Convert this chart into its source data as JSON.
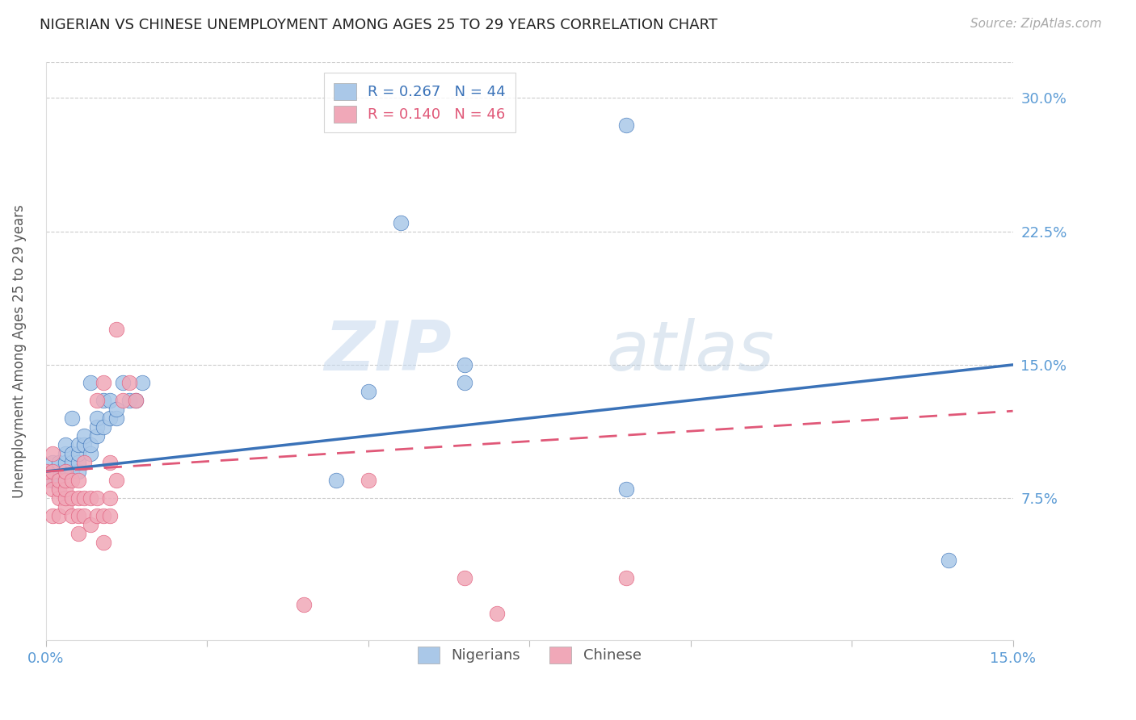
{
  "title": "NIGERIAN VS CHINESE UNEMPLOYMENT AMONG AGES 25 TO 29 YEARS CORRELATION CHART",
  "source": "Source: ZipAtlas.com",
  "ylabel": "Unemployment Among Ages 25 to 29 years",
  "xlim": [
    0.0,
    0.15
  ],
  "ylim": [
    -0.005,
    0.32
  ],
  "watermark": "ZIPatlas",
  "nigerian_R": 0.267,
  "nigerian_N": 44,
  "chinese_R": 0.14,
  "chinese_N": 46,
  "nigerian_color": "#aac8e8",
  "chinese_color": "#f0a8b8",
  "nigerian_line_color": "#3a72b8",
  "chinese_line_color": "#e05878",
  "nigerian_x": [
    0.001,
    0.001,
    0.001,
    0.002,
    0.002,
    0.002,
    0.003,
    0.003,
    0.003,
    0.003,
    0.004,
    0.004,
    0.004,
    0.004,
    0.005,
    0.005,
    0.005,
    0.005,
    0.006,
    0.006,
    0.007,
    0.007,
    0.007,
    0.008,
    0.008,
    0.008,
    0.009,
    0.009,
    0.01,
    0.01,
    0.011,
    0.011,
    0.012,
    0.013,
    0.014,
    0.015,
    0.045,
    0.05,
    0.055,
    0.065,
    0.065,
    0.09,
    0.09,
    0.14
  ],
  "nigerian_y": [
    0.085,
    0.09,
    0.095,
    0.085,
    0.09,
    0.095,
    0.09,
    0.095,
    0.1,
    0.105,
    0.09,
    0.095,
    0.1,
    0.12,
    0.09,
    0.095,
    0.1,
    0.105,
    0.105,
    0.11,
    0.1,
    0.105,
    0.14,
    0.11,
    0.115,
    0.12,
    0.115,
    0.13,
    0.12,
    0.13,
    0.12,
    0.125,
    0.14,
    0.13,
    0.13,
    0.14,
    0.085,
    0.135,
    0.23,
    0.14,
    0.15,
    0.08,
    0.285,
    0.04
  ],
  "chinese_x": [
    0.0,
    0.0,
    0.001,
    0.001,
    0.001,
    0.001,
    0.002,
    0.002,
    0.002,
    0.002,
    0.003,
    0.003,
    0.003,
    0.003,
    0.003,
    0.004,
    0.004,
    0.004,
    0.005,
    0.005,
    0.005,
    0.005,
    0.006,
    0.006,
    0.006,
    0.007,
    0.007,
    0.008,
    0.008,
    0.008,
    0.009,
    0.009,
    0.009,
    0.01,
    0.01,
    0.01,
    0.011,
    0.011,
    0.012,
    0.013,
    0.014,
    0.04,
    0.05,
    0.065,
    0.07,
    0.09
  ],
  "chinese_y": [
    0.085,
    0.09,
    0.065,
    0.08,
    0.09,
    0.1,
    0.065,
    0.075,
    0.08,
    0.085,
    0.07,
    0.075,
    0.08,
    0.085,
    0.09,
    0.065,
    0.075,
    0.085,
    0.055,
    0.065,
    0.075,
    0.085,
    0.065,
    0.075,
    0.095,
    0.06,
    0.075,
    0.065,
    0.075,
    0.13,
    0.05,
    0.065,
    0.14,
    0.065,
    0.075,
    0.095,
    0.085,
    0.17,
    0.13,
    0.14,
    0.13,
    0.015,
    0.085,
    0.03,
    0.01,
    0.03
  ],
  "nig_line_x0": 0.0,
  "nig_line_y0": 0.09,
  "nig_line_x1": 0.15,
  "nig_line_y1": 0.15,
  "chi_line_x0": 0.0,
  "chi_line_y0": 0.09,
  "chi_line_x1": 0.15,
  "chi_line_y1": 0.124
}
